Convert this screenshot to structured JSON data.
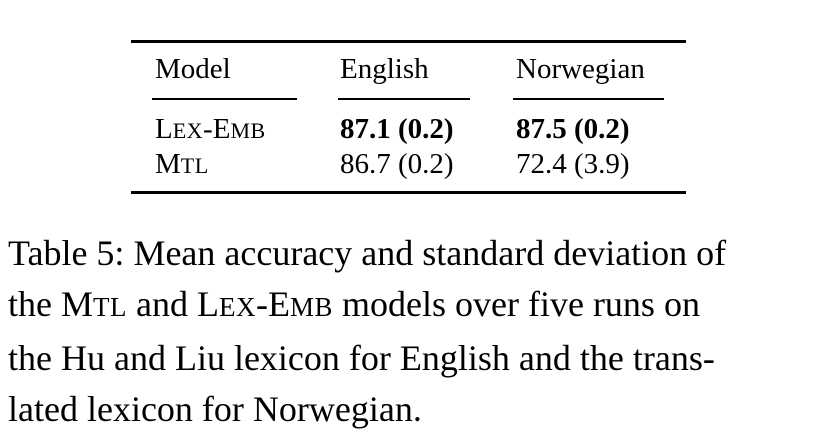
{
  "table": {
    "headers": [
      "Model",
      "English",
      "Norwegian"
    ],
    "rows": [
      {
        "model": {
          "cap1": "L",
          "small1": "EX",
          "dash": "-",
          "cap2": "E",
          "small2": "MB"
        },
        "english": "87.1 (0.2)",
        "norwegian": "87.5 (0.2)",
        "bold": true
      },
      {
        "model": {
          "cap1": "M",
          "small1": "TL"
        },
        "english": "86.7 (0.2)",
        "norwegian": "72.4 (3.9)",
        "bold": false
      }
    ]
  },
  "caption": {
    "line1": "Table 5: Mean accuracy and standard deviation of",
    "line2_a": "the ",
    "line2_mtl_cap": "M",
    "line2_mtl_small": "TL",
    "line2_b": " and ",
    "line2_lex_cap1": "L",
    "line2_lex_small1": "EX",
    "line2_lex_dash": "-",
    "line2_lex_cap2": "E",
    "line2_lex_small2": "MB",
    "line2_c": " models over five runs on",
    "line3": "the Hu and Liu lexicon for English and the trans-",
    "line4": "lated lexicon for Norwegian."
  }
}
